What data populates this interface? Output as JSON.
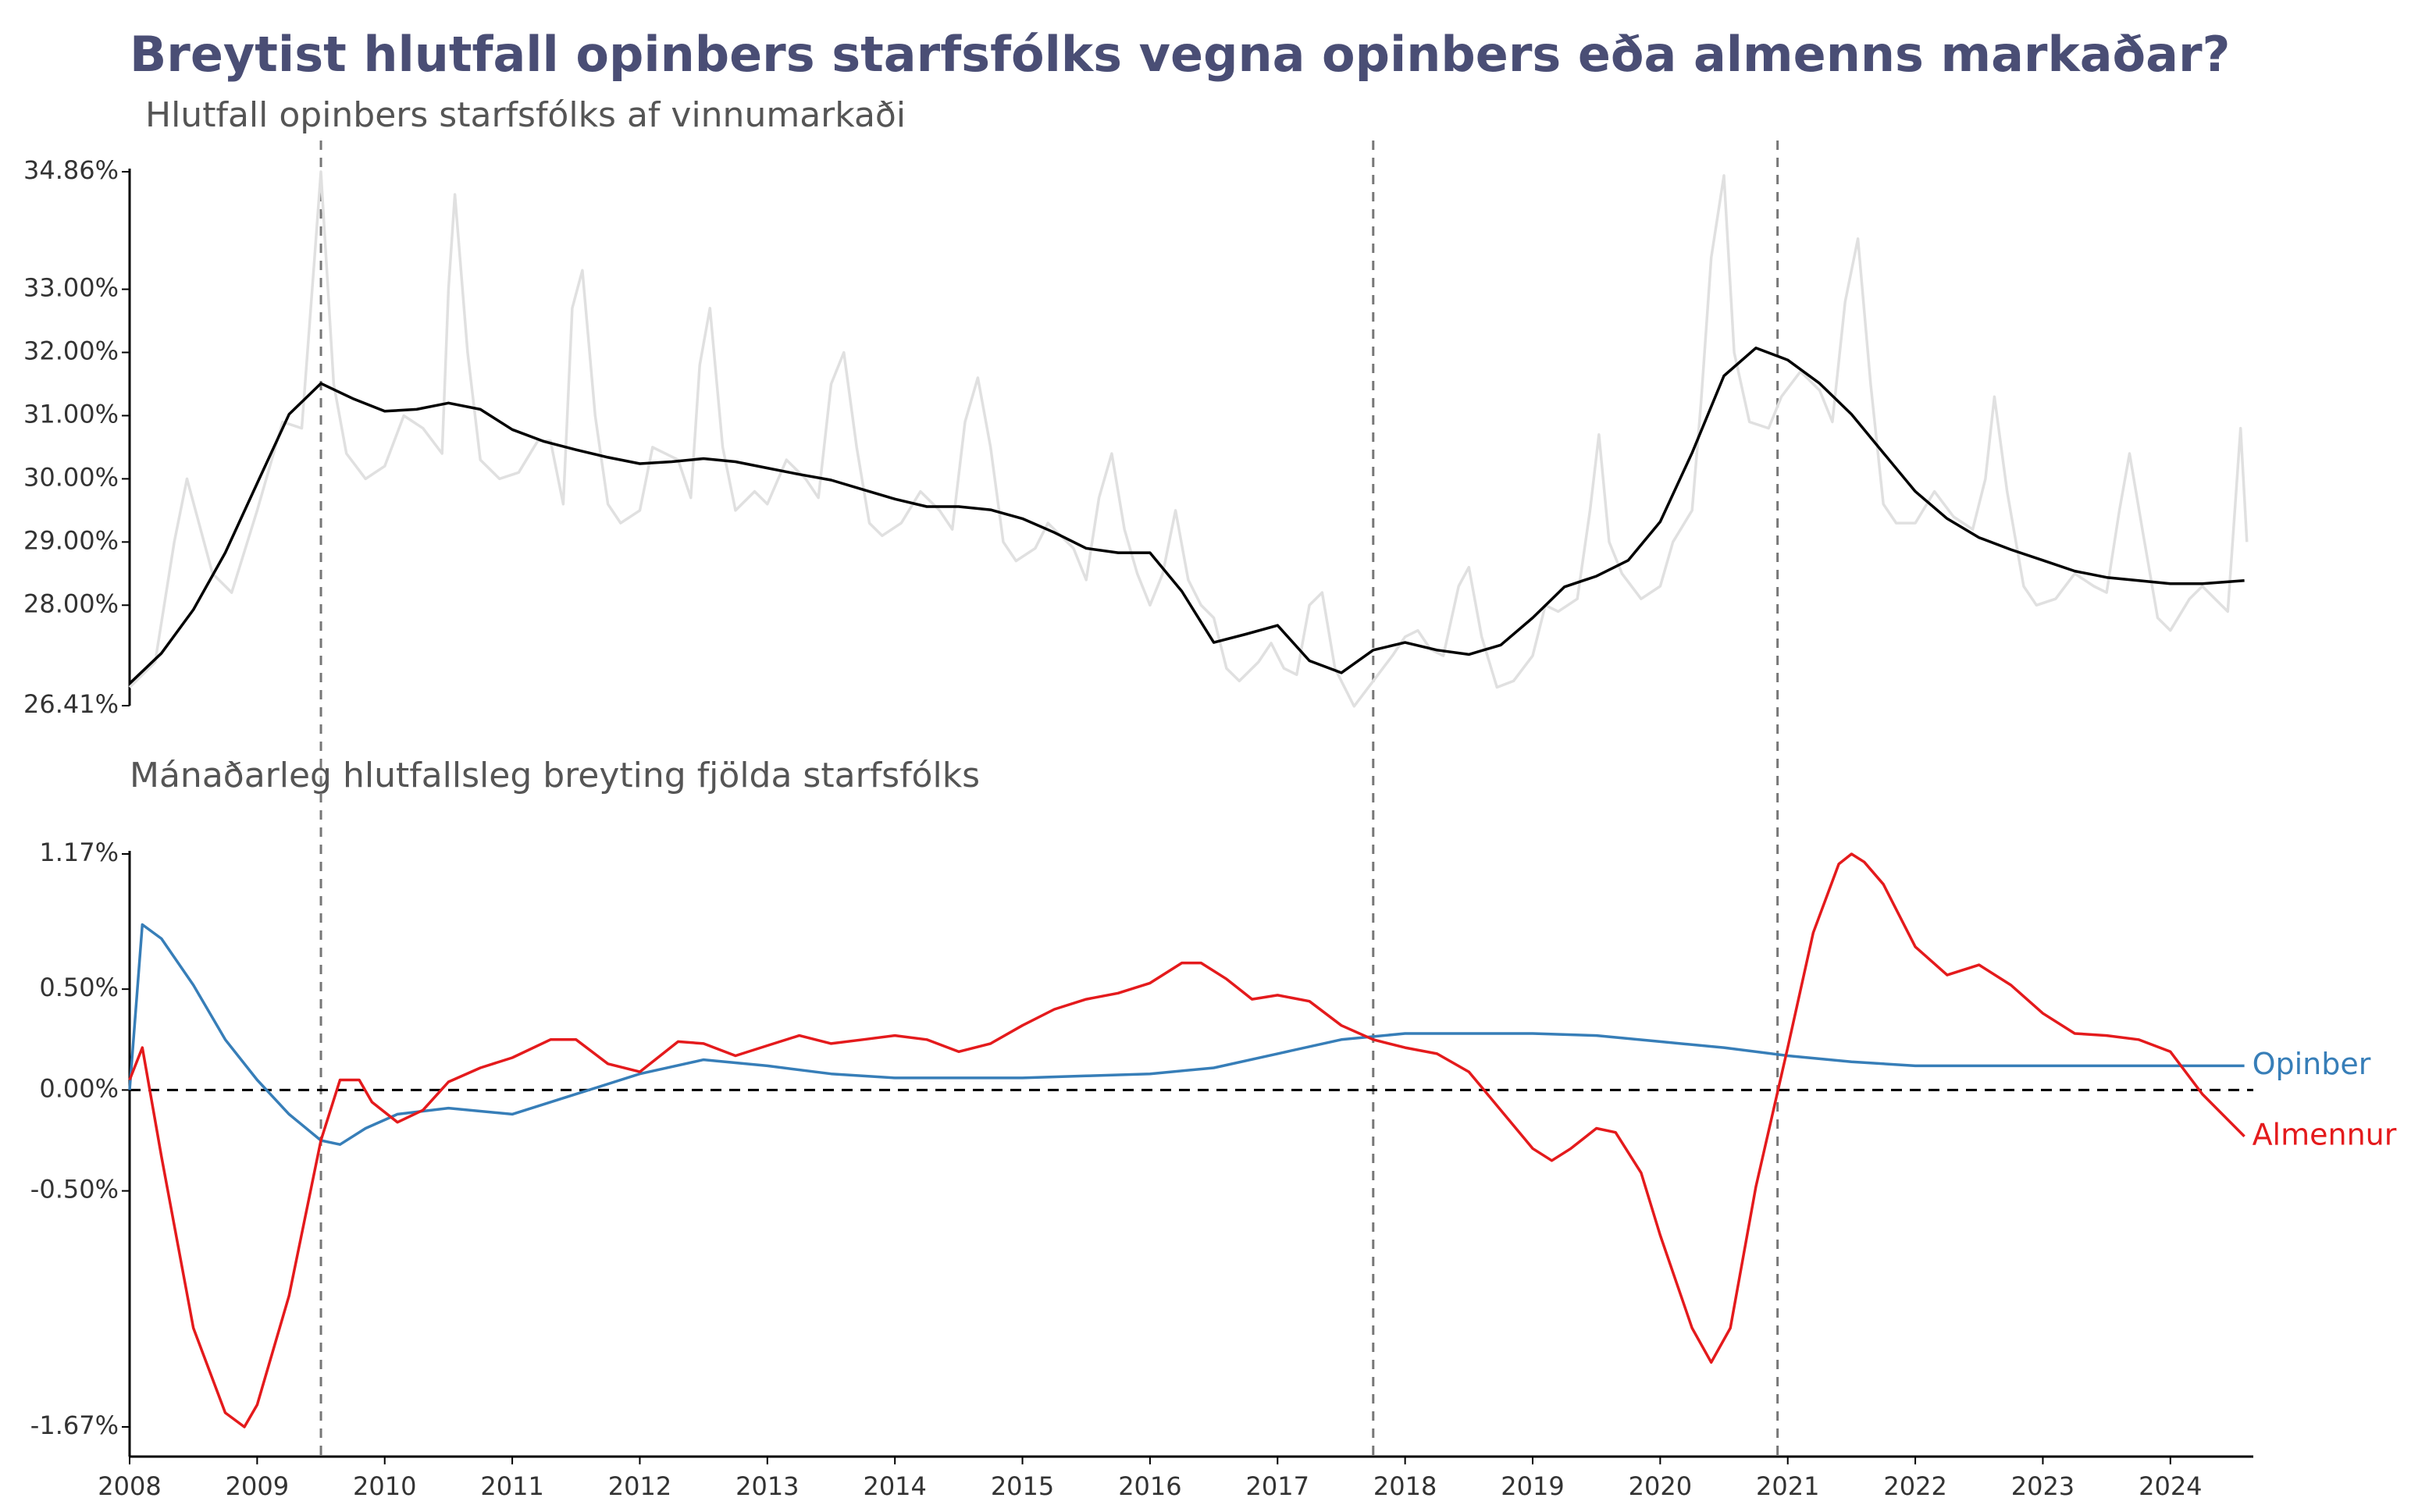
{
  "chart_data": [
    {
      "type": "line",
      "title": "Breytist hlutfall opinbers starfsfólks vegna opinbers eða almenns markaðar?",
      "subtitle": "Hlutfall opinbers starfsfólks af vinnumarkaði",
      "xlim": [
        2008,
        2024.65
      ],
      "ylim": [
        26.41,
        34.86
      ],
      "yticks": [
        {
          "value": 26.41,
          "label": "26.41%"
        },
        {
          "value": 28,
          "label": "28.00%"
        },
        {
          "value": 29,
          "label": "29.00%"
        },
        {
          "value": 30,
          "label": "30.00%"
        },
        {
          "value": 31,
          "label": "31.00%"
        },
        {
          "value": 32,
          "label": "32.00%"
        },
        {
          "value": 33,
          "label": "33.00%"
        },
        {
          "value": 34.86,
          "label": "34.86%"
        }
      ],
      "vlines": [
        2009.5,
        2017.75,
        2020.92
      ],
      "series": [
        {
          "color": "#e0e0e0",
          "x": [
            2008.0,
            2008.2,
            2008.35,
            2008.45,
            2008.65,
            2008.8,
            2009.0,
            2009.2,
            2009.35,
            2009.45,
            2009.5,
            2009.6,
            2009.7,
            2009.85,
            2010.0,
            2010.15,
            2010.3,
            2010.45,
            2010.5,
            2010.55,
            2010.65,
            2010.75,
            2010.9,
            2011.05,
            2011.2,
            2011.3,
            2011.4,
            2011.47,
            2011.55,
            2011.65,
            2011.75,
            2011.85,
            2012.0,
            2012.1,
            2012.3,
            2012.4,
            2012.47,
            2012.55,
            2012.65,
            2012.75,
            2012.9,
            2013.0,
            2013.15,
            2013.3,
            2013.4,
            2013.5,
            2013.6,
            2013.7,
            2013.8,
            2013.9,
            2014.05,
            2014.2,
            2014.35,
            2014.45,
            2014.55,
            2014.65,
            2014.75,
            2014.85,
            2014.95,
            2015.1,
            2015.2,
            2015.4,
            2015.5,
            2015.6,
            2015.7,
            2015.8,
            2015.9,
            2016.0,
            2016.1,
            2016.2,
            2016.3,
            2016.4,
            2016.5,
            2016.6,
            2016.7,
            2016.85,
            2016.95,
            2017.05,
            2017.15,
            2017.25,
            2017.35,
            2017.45,
            2017.6,
            2017.75,
            2017.9,
            2018.0,
            2018.1,
            2018.2,
            2018.3,
            2018.42,
            2018.5,
            2018.6,
            2018.72,
            2018.85,
            2019.0,
            2019.1,
            2019.2,
            2019.35,
            2019.45,
            2019.52,
            2019.6,
            2019.7,
            2019.85,
            2020.0,
            2020.1,
            2020.25,
            2020.32,
            2020.4,
            2020.5,
            2020.58,
            2020.7,
            2020.85,
            2020.95,
            2021.1,
            2021.25,
            2021.35,
            2021.45,
            2021.55,
            2021.65,
            2021.75,
            2021.85,
            2022.0,
            2022.15,
            2022.3,
            2022.45,
            2022.55,
            2022.62,
            2022.72,
            2022.85,
            2022.95,
            2023.1,
            2023.25,
            2023.4,
            2023.5,
            2023.6,
            2023.68,
            2023.78,
            2023.9,
            2024.0,
            2024.15,
            2024.25,
            2024.35,
            2024.45,
            2024.55,
            2024.6
          ],
          "values": [
            26.7,
            27.1,
            29.0,
            30.0,
            28.5,
            28.2,
            29.5,
            30.9,
            30.8,
            33.5,
            34.86,
            31.5,
            30.4,
            30.0,
            30.2,
            31.0,
            30.8,
            30.4,
            33.0,
            34.5,
            32.0,
            30.3,
            30.0,
            30.1,
            30.6,
            30.6,
            29.6,
            32.7,
            33.3,
            31.0,
            29.6,
            29.3,
            29.5,
            30.5,
            30.3,
            29.7,
            31.8,
            32.7,
            30.5,
            29.5,
            29.8,
            29.6,
            30.3,
            30.0,
            29.7,
            31.5,
            32.0,
            30.5,
            29.3,
            29.1,
            29.3,
            29.8,
            29.5,
            29.2,
            30.9,
            31.6,
            30.5,
            29.0,
            28.7,
            28.9,
            29.3,
            28.9,
            28.4,
            29.7,
            30.4,
            29.2,
            28.5,
            28.0,
            28.5,
            29.5,
            28.4,
            28.0,
            27.8,
            27.0,
            26.8,
            27.1,
            27.4,
            27.0,
            26.9,
            28.0,
            28.2,
            27.0,
            26.4,
            26.8,
            27.2,
            27.5,
            27.6,
            27.3,
            27.2,
            28.3,
            28.6,
            27.5,
            26.7,
            26.8,
            27.2,
            28.0,
            27.9,
            28.1,
            29.5,
            30.7,
            29.0,
            28.5,
            28.1,
            28.3,
            29.0,
            29.5,
            31.2,
            33.5,
            34.8,
            32.0,
            30.9,
            30.8,
            31.3,
            31.7,
            31.4,
            30.9,
            32.8,
            33.8,
            31.5,
            29.6,
            29.3,
            29.3,
            29.8,
            29.4,
            29.2,
            30.0,
            31.3,
            29.8,
            28.3,
            28.0,
            28.1,
            28.5,
            28.3,
            28.2,
            29.5,
            30.4,
            29.2,
            27.8,
            27.6,
            28.1,
            28.3,
            28.1,
            27.9,
            30.8,
            29.0
          ]
        },
        {
          "color": "#000000",
          "x": [
            2008.0,
            2008.25,
            2008.5,
            2008.75,
            2009.0,
            2009.25,
            2009.5,
            2009.75,
            2010.0,
            2010.25,
            2010.5,
            2010.75,
            2011.0,
            2011.25,
            2011.5,
            2011.75,
            2012.0,
            2012.25,
            2012.5,
            2012.75,
            2013.0,
            2013.25,
            2013.5,
            2013.75,
            2014.0,
            2014.25,
            2014.5,
            2014.75,
            2015.0,
            2015.25,
            2015.5,
            2015.75,
            2016.0,
            2016.25,
            2016.5,
            2016.75,
            2017.0,
            2017.25,
            2017.5,
            2017.75,
            2018.0,
            2018.25,
            2018.5,
            2018.75,
            2019.0,
            2019.25,
            2019.5,
            2019.75,
            2020.0,
            2020.25,
            2020.5,
            2020.75,
            2021.0,
            2021.25,
            2021.5,
            2021.75,
            2022.0,
            2022.25,
            2022.5,
            2022.75,
            2023.0,
            2023.25,
            2023.5,
            2023.75,
            2024.0,
            2024.25,
            2024.58
          ],
          "values": [
            26.76,
            27.24,
            27.93,
            28.83,
            29.93,
            31.02,
            31.51,
            31.27,
            31.07,
            31.1,
            31.2,
            31.1,
            30.78,
            30.59,
            30.46,
            30.34,
            30.24,
            30.27,
            30.32,
            30.27,
            30.17,
            30.07,
            29.98,
            29.83,
            29.68,
            29.56,
            29.56,
            29.51,
            29.37,
            29.15,
            28.9,
            28.83,
            28.83,
            28.22,
            27.41,
            27.54,
            27.68,
            27.12,
            26.93,
            27.29,
            27.41,
            27.29,
            27.22,
            27.37,
            27.8,
            28.29,
            28.46,
            28.71,
            29.32,
            30.41,
            31.63,
            32.07,
            31.88,
            31.51,
            31.02,
            30.41,
            29.8,
            29.37,
            29.07,
            28.88,
            28.71,
            28.54,
            28.44,
            28.39,
            28.34,
            28.34,
            28.39
          ]
        }
      ]
    },
    {
      "type": "line",
      "subtitle": "Mánaðarleg hlutfallsleg breyting fjölda starfsfólks",
      "xlim": [
        2008,
        2024.65
      ],
      "xticks": [
        2008,
        2009,
        2010,
        2011,
        2012,
        2013,
        2014,
        2015,
        2016,
        2017,
        2018,
        2019,
        2020,
        2021,
        2022,
        2023,
        2024
      ],
      "ylim": [
        -1.67,
        1.17
      ],
      "yticks": [
        {
          "value": -1.67,
          "label": "-1.67%"
        },
        {
          "value": -0.5,
          "label": "-0.50%"
        },
        {
          "value": 0,
          "label": "0.00%"
        },
        {
          "value": 0.5,
          "label": "0.50%"
        },
        {
          "value": 1.17,
          "label": "1.17%"
        }
      ],
      "hlines": [
        0
      ],
      "series": [
        {
          "name": "Opinber",
          "color": "#377eb8",
          "x": [
            2008.0,
            2008.1,
            2008.25,
            2008.5,
            2008.75,
            2009.0,
            2009.25,
            2009.5,
            2009.65,
            2009.85,
            2010.1,
            2010.5,
            2011.0,
            2011.5,
            2012.0,
            2012.5,
            2013.0,
            2013.5,
            2014.0,
            2014.5,
            2015.0,
            2015.5,
            2016.0,
            2016.5,
            2017.0,
            2017.5,
            2018.0,
            2018.5,
            2019.0,
            2019.5,
            2020.0,
            2020.5,
            2021.0,
            2021.5,
            2022.0,
            2022.5,
            2023.0,
            2023.5,
            2024.0,
            2024.58
          ],
          "values": [
            0,
            0.82,
            0.75,
            0.52,
            0.25,
            0.05,
            -0.12,
            -0.25,
            -0.27,
            -0.19,
            -0.12,
            -0.09,
            -0.12,
            -0.02,
            0.08,
            0.15,
            0.12,
            0.08,
            0.06,
            0.06,
            0.06,
            0.07,
            0.08,
            0.11,
            0.18,
            0.25,
            0.28,
            0.28,
            0.28,
            0.27,
            0.24,
            0.21,
            0.17,
            0.14,
            0.12,
            0.12,
            0.12,
            0.12,
            0.12,
            0.12
          ]
        },
        {
          "name": "Almennur",
          "color": "#e41a1c",
          "x": [
            2008.0,
            2008.1,
            2008.25,
            2008.5,
            2008.75,
            2008.9,
            2009.0,
            2009.25,
            2009.5,
            2009.65,
            2009.8,
            2009.9,
            2010.1,
            2010.3,
            2010.5,
            2010.75,
            2011.0,
            2011.3,
            2011.5,
            2011.75,
            2012.0,
            2012.3,
            2012.5,
            2012.75,
            2013.0,
            2013.25,
            2013.5,
            2013.75,
            2014.0,
            2014.25,
            2014.5,
            2014.75,
            2015.0,
            2015.25,
            2015.5,
            2015.75,
            2016.0,
            2016.25,
            2016.4,
            2016.6,
            2016.8,
            2017.0,
            2017.25,
            2017.5,
            2017.75,
            2018.0,
            2018.25,
            2018.5,
            2018.75,
            2019.0,
            2019.15,
            2019.3,
            2019.5,
            2019.65,
            2019.85,
            2020.0,
            2020.25,
            2020.4,
            2020.55,
            2020.75,
            2021.0,
            2021.2,
            2021.4,
            2021.5,
            2021.6,
            2021.75,
            2022.0,
            2022.25,
            2022.5,
            2022.75,
            2023.0,
            2023.25,
            2023.5,
            2023.75,
            2024.0,
            2024.25,
            2024.58
          ],
          "values": [
            0.05,
            0.21,
            -0.33,
            -1.18,
            -1.6,
            -1.67,
            -1.56,
            -1.02,
            -0.25,
            0.05,
            0.05,
            -0.06,
            -0.16,
            -0.1,
            0.04,
            0.11,
            0.16,
            0.25,
            0.25,
            0.13,
            0.09,
            0.24,
            0.23,
            0.17,
            0.22,
            0.27,
            0.23,
            0.25,
            0.27,
            0.25,
            0.19,
            0.23,
            0.32,
            0.4,
            0.45,
            0.48,
            0.53,
            0.63,
            0.63,
            0.55,
            0.45,
            0.47,
            0.44,
            0.32,
            0.25,
            0.21,
            0.18,
            0.09,
            -0.1,
            -0.29,
            -0.35,
            -0.29,
            -0.19,
            -0.21,
            -0.41,
            -0.72,
            -1.18,
            -1.35,
            -1.18,
            -0.48,
            0.21,
            0.78,
            1.12,
            1.17,
            1.13,
            1.02,
            0.71,
            0.57,
            0.62,
            0.52,
            0.38,
            0.28,
            0.27,
            0.25,
            0.19,
            -0.02,
            -0.23
          ]
        }
      ]
    }
  ]
}
